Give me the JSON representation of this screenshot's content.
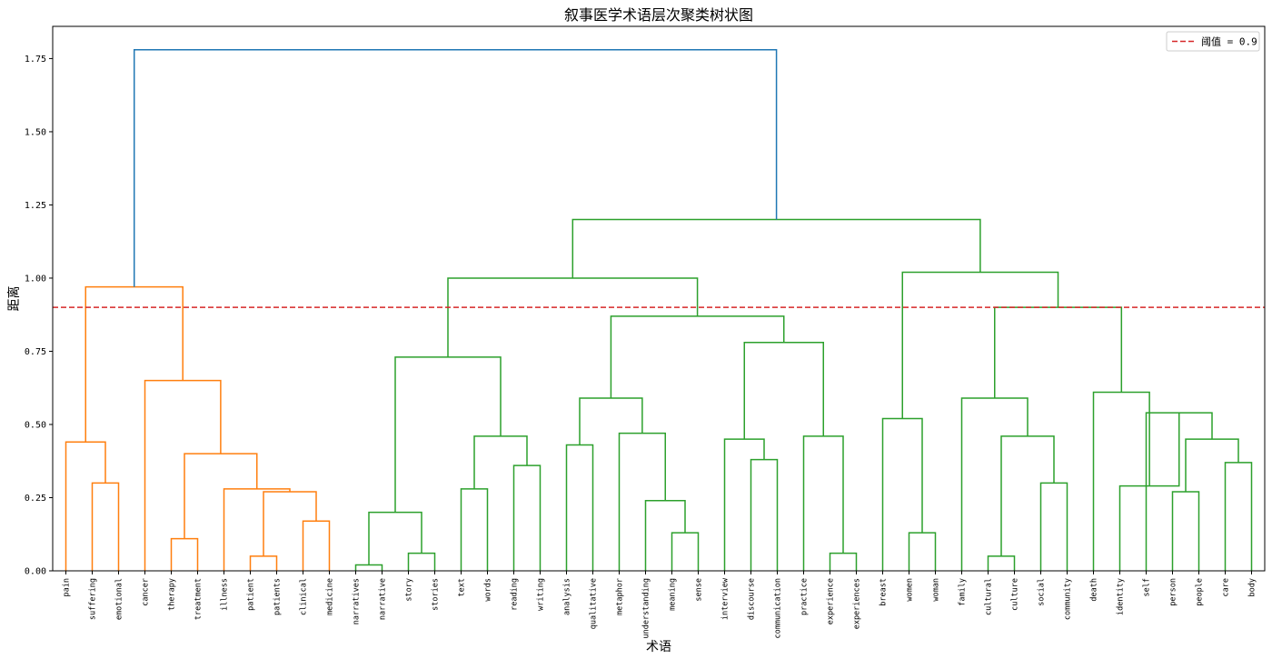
{
  "chart_data": {
    "type": "dendrogram",
    "title": "叙事医学术语层次聚类树状图",
    "xlabel": "术语",
    "ylabel": "距离",
    "ylim": [
      0,
      1.86
    ],
    "yticks": [
      "0.00",
      "0.25",
      "0.50",
      "0.75",
      "1.00",
      "1.25",
      "1.50",
      "1.75"
    ],
    "threshold": {
      "value": 0.9,
      "label": "阈值 = 0.9",
      "color": "#d62728"
    },
    "legend_position": "top-right",
    "colors": {
      "orange": "#ff7f0e",
      "green": "#2ca02c",
      "blue": "#1f77b4"
    },
    "leaves": [
      "pain",
      "suffering",
      "emotional",
      "cancer",
      "therapy",
      "treatment",
      "illness",
      "patient",
      "patients",
      "clinical",
      "medicine",
      "narratives",
      "narrative",
      "story",
      "stories",
      "text",
      "words",
      "reading",
      "writing",
      "analysis",
      "qualitative",
      "metaphor",
      "understanding",
      "meaning",
      "sense",
      "interview",
      "discourse",
      "communication",
      "practice",
      "experience",
      "experiences",
      "breast",
      "women",
      "woman",
      "family",
      "cultural",
      "culture",
      "social",
      "community",
      "death",
      "identity",
      "self",
      "person",
      "people",
      "care",
      "body"
    ],
    "merges": [
      {
        "id": "c1",
        "left": "suffering",
        "right": "emotional",
        "height": 0.3,
        "color": "orange"
      },
      {
        "id": "c2",
        "left": "pain",
        "right": "c1",
        "height": 0.44,
        "color": "orange"
      },
      {
        "id": "c3",
        "left": "therapy",
        "right": "treatment",
        "height": 0.11,
        "color": "orange"
      },
      {
        "id": "c4",
        "left": "patient",
        "right": "patients",
        "height": 0.05,
        "color": "orange"
      },
      {
        "id": "c5",
        "left": "clinical",
        "right": "medicine",
        "height": 0.17,
        "color": "orange"
      },
      {
        "id": "c6",
        "left": "c4",
        "right": "c5",
        "height": 0.27,
        "color": "orange"
      },
      {
        "id": "c7",
        "left": "illness",
        "right": "c6",
        "height": 0.28,
        "color": "orange"
      },
      {
        "id": "c8",
        "left": "c3",
        "right": "c7",
        "height": 0.4,
        "color": "orange"
      },
      {
        "id": "c9",
        "left": "cancer",
        "right": "c8",
        "height": 0.65,
        "color": "orange"
      },
      {
        "id": "c10",
        "left": "c2",
        "right": "c9",
        "height": 0.97,
        "color": "orange"
      },
      {
        "id": "c11",
        "left": "narratives",
        "right": "narrative",
        "height": 0.02,
        "color": "green"
      },
      {
        "id": "c12",
        "left": "story",
        "right": "stories",
        "height": 0.06,
        "color": "green"
      },
      {
        "id": "c13",
        "left": "c11",
        "right": "c12",
        "height": 0.2,
        "color": "green"
      },
      {
        "id": "c14",
        "left": "text",
        "right": "words",
        "height": 0.28,
        "color": "green"
      },
      {
        "id": "c15",
        "left": "reading",
        "right": "writing",
        "height": 0.36,
        "color": "green"
      },
      {
        "id": "c16",
        "left": "c14",
        "right": "c15",
        "height": 0.46,
        "color": "green"
      },
      {
        "id": "c17",
        "left": "c13",
        "right": "c16",
        "height": 0.73,
        "color": "green"
      },
      {
        "id": "c18",
        "left": "analysis",
        "right": "qualitative",
        "height": 0.43,
        "color": "green"
      },
      {
        "id": "c19",
        "left": "meaning",
        "right": "sense",
        "height": 0.13,
        "color": "green"
      },
      {
        "id": "c20",
        "left": "understanding",
        "right": "c19",
        "height": 0.24,
        "color": "green"
      },
      {
        "id": "c21",
        "left": "metaphor",
        "right": "c20",
        "height": 0.47,
        "color": "green"
      },
      {
        "id": "c22",
        "left": "c18",
        "right": "c21",
        "height": 0.59,
        "color": "green"
      },
      {
        "id": "c23",
        "left": "discourse",
        "right": "communication",
        "height": 0.38,
        "color": "green"
      },
      {
        "id": "c24",
        "left": "interview",
        "right": "c23",
        "height": 0.45,
        "color": "green"
      },
      {
        "id": "c25",
        "left": "experience",
        "right": "experiences",
        "height": 0.06,
        "color": "green"
      },
      {
        "id": "c26",
        "left": "practice",
        "right": "c25",
        "height": 0.46,
        "color": "green"
      },
      {
        "id": "c27",
        "left": "c24",
        "right": "c26",
        "height": 0.78,
        "color": "green"
      },
      {
        "id": "c28",
        "left": "c22",
        "right": "c27",
        "height": 0.87,
        "color": "green"
      },
      {
        "id": "c29",
        "left": "c17",
        "right": "c28",
        "height": 1.0,
        "color": "green"
      },
      {
        "id": "c30",
        "left": "women",
        "right": "woman",
        "height": 0.13,
        "color": "green"
      },
      {
        "id": "c31",
        "left": "breast",
        "right": "c30",
        "height": 0.52,
        "color": "green"
      },
      {
        "id": "c32",
        "left": "cultural",
        "right": "culture",
        "height": 0.05,
        "color": "green"
      },
      {
        "id": "c33",
        "left": "social",
        "right": "community",
        "height": 0.3,
        "color": "green"
      },
      {
        "id": "c34",
        "left": "c32",
        "right": "c33",
        "height": 0.46,
        "color": "green"
      },
      {
        "id": "c35",
        "left": "family",
        "right": "c34",
        "height": 0.59,
        "color": "green"
      },
      {
        "id": "c36",
        "left": "care",
        "right": "body",
        "height": 0.37,
        "color": "green"
      },
      {
        "id": "c37",
        "left": "person",
        "right": "people",
        "height": 0.27,
        "color": "green"
      },
      {
        "id": "c38",
        "left": "c37",
        "right": "c36",
        "height": 0.45,
        "color": "green"
      },
      {
        "id": "c39",
        "left": "self",
        "right": "c38",
        "height": 0.54,
        "color": "green"
      },
      {
        "id": "c40",
        "left": "identity",
        "right": "c39",
        "height": 0.29,
        "color": "green"
      },
      {
        "id": "c41",
        "left": "death",
        "right": "c40",
        "height": 0.61,
        "color": "green"
      },
      {
        "id": "c42",
        "left": "c35",
        "right": "c41",
        "height": 0.9,
        "color": "green"
      },
      {
        "id": "c43",
        "left": "c31",
        "right": "c42",
        "height": 1.02,
        "color": "green"
      },
      {
        "id": "c44",
        "left": "c29",
        "right": "c43",
        "height": 1.2,
        "color": "green"
      },
      {
        "id": "c45",
        "left": "c10",
        "right": "c44",
        "height": 1.78,
        "color": "blue"
      }
    ]
  }
}
